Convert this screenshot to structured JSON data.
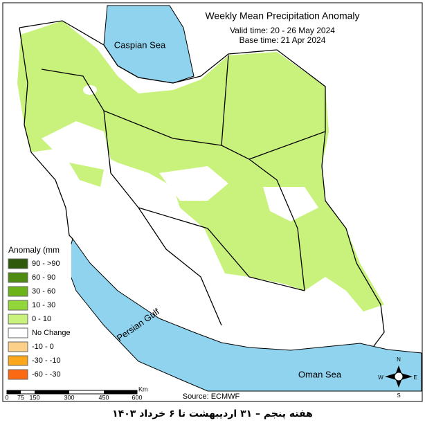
{
  "header": {
    "title": "Weekly Mean Precipitation Anomaly",
    "valid_time": "Valid time: 20 - 26 May 2024",
    "base_time": "Base time: 21 Apr 2024"
  },
  "seas": {
    "caspian": "Caspian Sea",
    "gulf": "Persian Gulf",
    "oman": "Oman Sea"
  },
  "legend": {
    "title": "Anomaly (mm",
    "items": [
      {
        "label": "90 - >90",
        "color": "#2e5a0a"
      },
      {
        "label": "60 - 90",
        "color": "#4f8a12"
      },
      {
        "label": "30 - 60",
        "color": "#6cb31a"
      },
      {
        "label": "10 - 30",
        "color": "#93d63a"
      },
      {
        "label": "0 - 10",
        "color": "#c9f27c"
      },
      {
        "label": "No Change",
        "color": "#ffffff"
      },
      {
        "label": "-10 - 0",
        "color": "#fdd08a"
      },
      {
        "label": "-30 - -10",
        "color": "#fca61c"
      },
      {
        "label": "-60 - -30",
        "color": "#fb6a12"
      }
    ]
  },
  "scale_bar": {
    "labels": [
      "0",
      "75",
      "150",
      "300",
      "450",
      "600"
    ],
    "unit": "Km"
  },
  "compass": {
    "n": "N",
    "e": "E",
    "s": "S",
    "w": "W"
  },
  "source": "Source: ECMWF",
  "caption": "هفته پنجم – ۳۱ اردیبهشت تا ۶ خرداد ۱۴۰۳"
}
